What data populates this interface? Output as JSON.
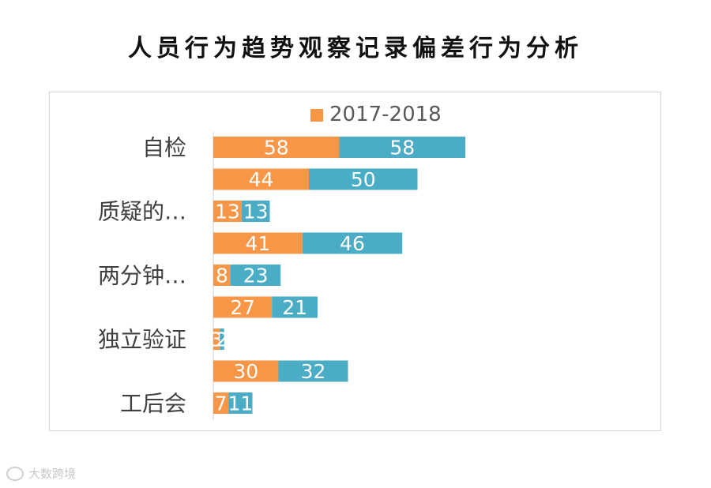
{
  "chart_data": {
    "type": "bar",
    "orientation": "horizontal",
    "stacked": true,
    "title": "人员行为趋势观察记录偏差行为分析",
    "categories": [
      "自检",
      "",
      "质疑的…",
      "",
      "两分钟…",
      "",
      "独立验证",
      "",
      "工后会"
    ],
    "series": [
      {
        "name": "2017-2018",
        "color": "#f79646",
        "values": [
          58,
          44,
          13,
          41,
          8,
          27,
          3,
          30,
          7
        ]
      },
      {
        "name": "",
        "color": "#4bacc6",
        "values": [
          58,
          50,
          13,
          46,
          23,
          21,
          2,
          32,
          11
        ]
      }
    ],
    "xlim": [
      0,
      160
    ],
    "xlabel": "",
    "ylabel": "",
    "grid": false,
    "legend": "top-center"
  },
  "watermark": {
    "text": "大数跨境"
  }
}
